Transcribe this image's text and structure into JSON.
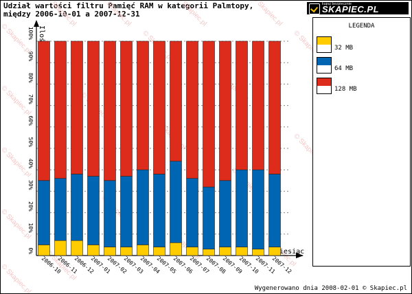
{
  "header": {
    "title_line1": "Udział wartości filtru Pamięć RAM w kategorii Palmtopy,",
    "title_line2": "między 2006-10-01 a 2007-12-31"
  },
  "logo": {
    "tag": "kupuj bezpiecznie",
    "brand": "SKAPIEC.PL"
  },
  "footer": {
    "text": "Wygenerowano dnia 2008-02-01 © Skapiec.pl"
  },
  "watermark": {
    "text": "© Skapiec.pl"
  },
  "legend": {
    "title": "LEGENDA",
    "items": [
      {
        "label": "32 MB",
        "color": "#ffcc00"
      },
      {
        "label": "64 MB",
        "color": "#0066b3"
      },
      {
        "label": "128 MB",
        "color": "#dd2b1c"
      }
    ]
  },
  "chart_data": {
    "type": "bar",
    "stacked": true,
    "title": "Udział wartości filtru Pamięć RAM w kategorii Palmtopy, między 2006-10-01 a 2007-12-31",
    "xlabel": "Miesiąc",
    "ylabel": "Ilość",
    "ylim": [
      0,
      100
    ],
    "ytick_labels": [
      "0%",
      "10%",
      "20%",
      "30%",
      "40%",
      "50%",
      "60%",
      "70%",
      "80%",
      "90%",
      "100%"
    ],
    "categories": [
      "2006-10",
      "2006-11",
      "2006-12",
      "2007-01",
      "2007-02",
      "2007-03",
      "2007-04",
      "2007-05",
      "2007-06",
      "2007-07",
      "2007-08",
      "2007-09",
      "2007-10",
      "2007-11",
      "2007-12"
    ],
    "series": [
      {
        "name": "32 MB",
        "color": "#ffcc00",
        "values": [
          5,
          7,
          7,
          5,
          4,
          4,
          5,
          4,
          6,
          4,
          3,
          4,
          4,
          3,
          4
        ]
      },
      {
        "name": "64 MB",
        "color": "#0066b3",
        "values": [
          30,
          29,
          31,
          32,
          31,
          33,
          35,
          34,
          38,
          32,
          29,
          31,
          36,
          37,
          34
        ]
      },
      {
        "name": "128 MB",
        "color": "#dd2b1c",
        "values": [
          65,
          64,
          62,
          63,
          65,
          63,
          60,
          62,
          56,
          64,
          68,
          65,
          60,
          60,
          62
        ]
      }
    ]
  }
}
